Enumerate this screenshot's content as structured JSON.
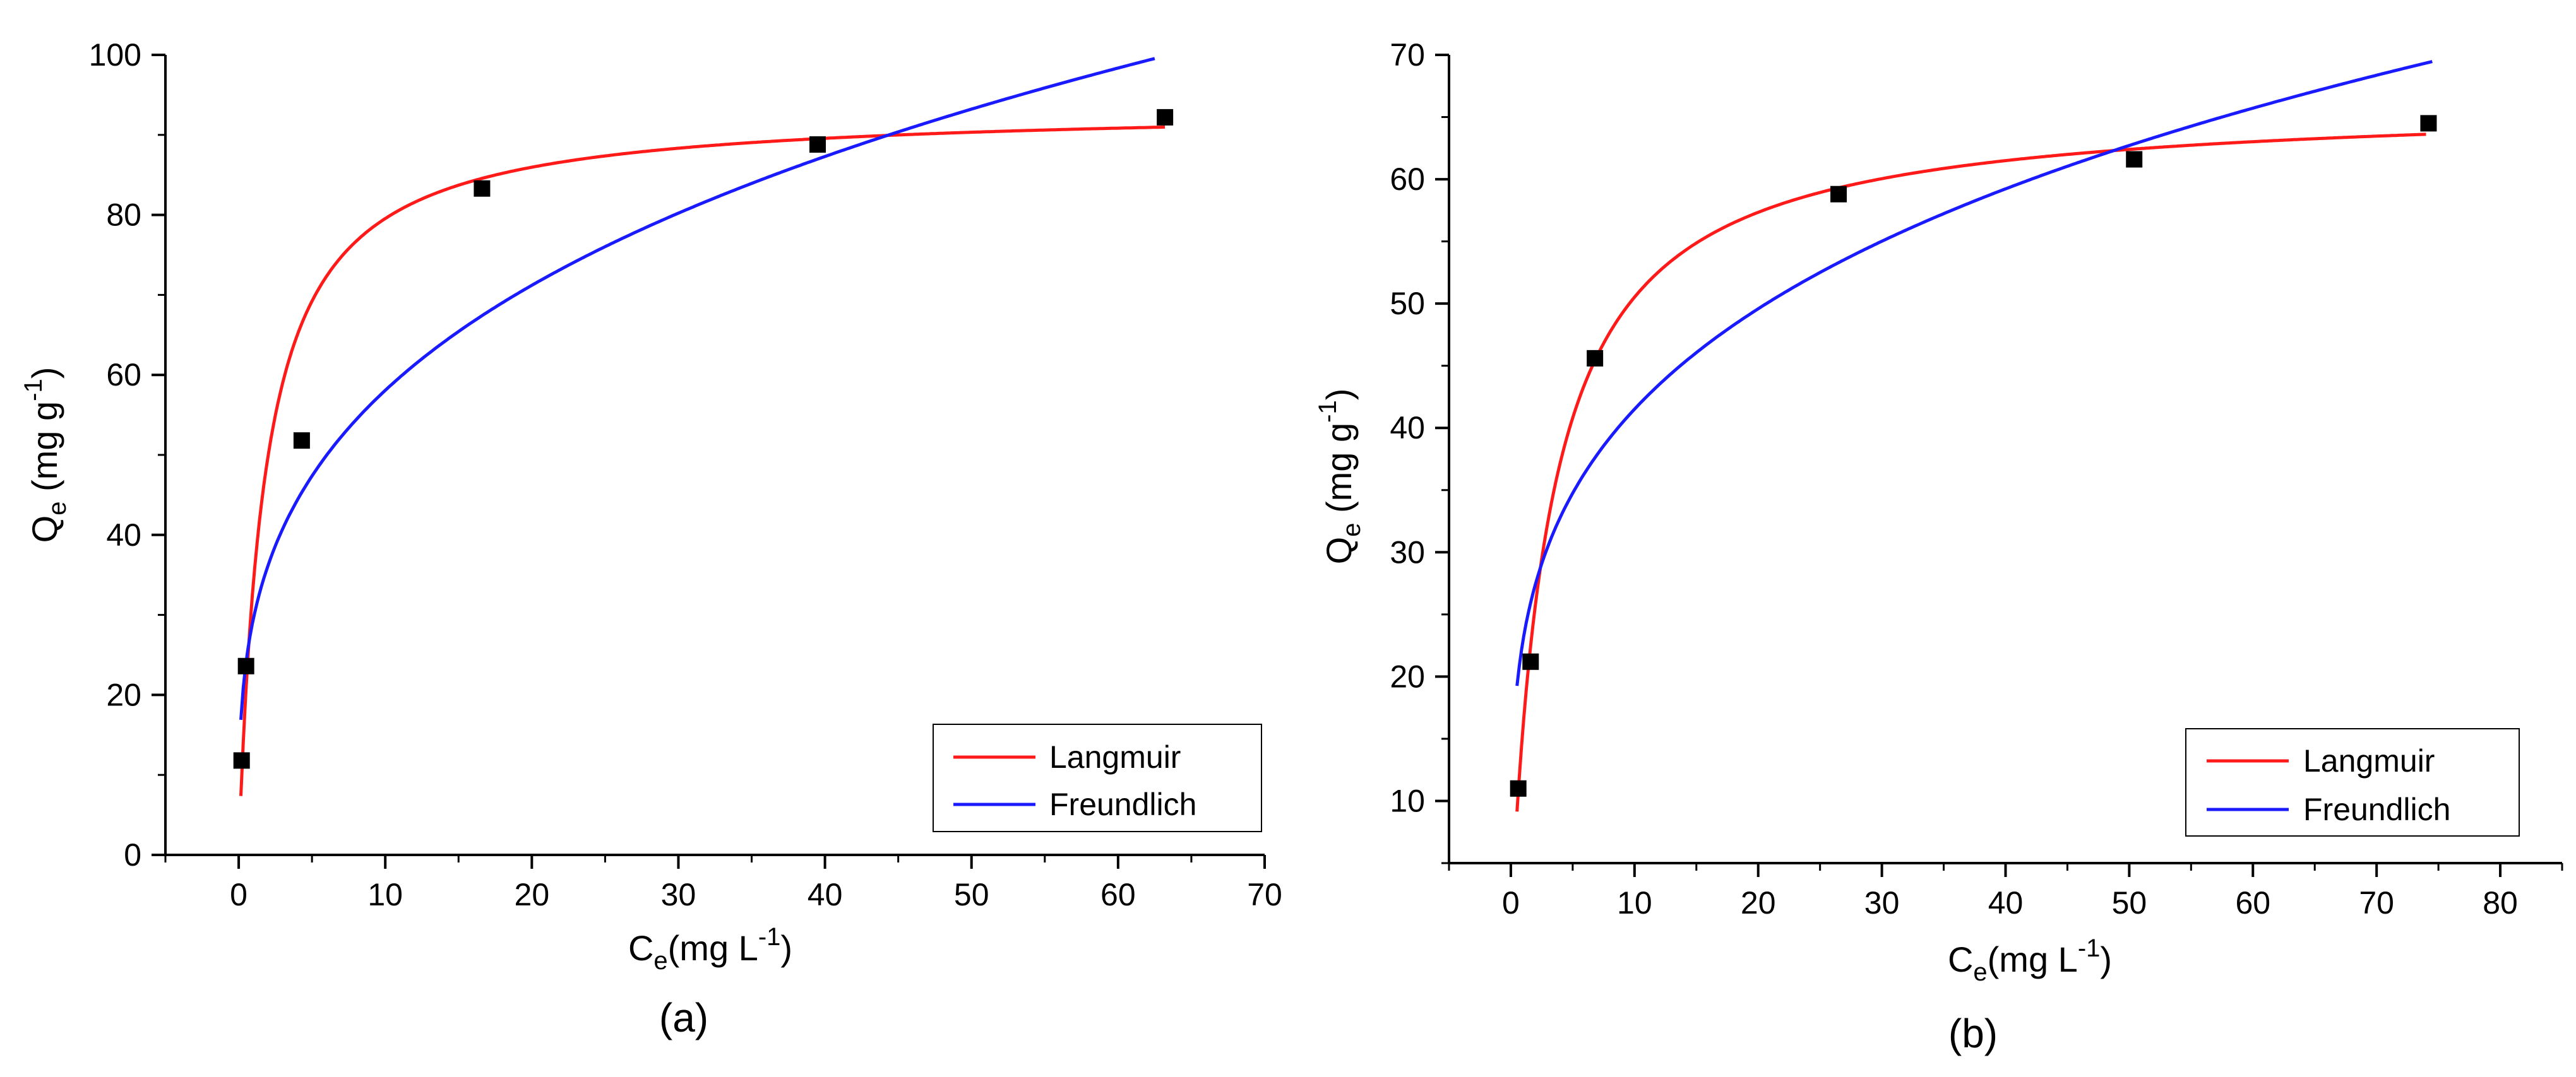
{
  "colors": {
    "langmuir": "#ff1a1a",
    "freundlich": "#1a1aff",
    "points": "#000000"
  },
  "chart_data": [
    {
      "type": "scatter",
      "panel_label": "(a)",
      "xlabel": {
        "main": "C",
        "sub": "e",
        "rest": "(mg L",
        "sup": "-1",
        "end": ")"
      },
      "ylabel": {
        "main": "Q",
        "sub": "e",
        "rest": " (mg g",
        "sup": "-1",
        "end": ")"
      },
      "xlim": [
        -5,
        70
      ],
      "ylim": [
        0,
        100
      ],
      "xticks": [
        0,
        10,
        20,
        30,
        40,
        50,
        60,
        70
      ],
      "yticks": [
        0,
        20,
        40,
        60,
        80,
        100
      ],
      "points": [
        {
          "x": 0.2,
          "y": 11.8
        },
        {
          "x": 0.5,
          "y": 23.6
        },
        {
          "x": 4.3,
          "y": 51.8
        },
        {
          "x": 16.6,
          "y": 83.3
        },
        {
          "x": 39.5,
          "y": 88.8
        },
        {
          "x": 63.2,
          "y": 92.2
        }
      ],
      "series": [
        {
          "name": "Langmuir",
          "model": "langmuir",
          "qmax": 93.5,
          "K": 0.57,
          "x_range": [
            0.15,
            63.2
          ]
        },
        {
          "name": "Freundlich",
          "model": "freundlich",
          "Kf": 29.5,
          "n": 3.4,
          "x_range": [
            0.15,
            62.5
          ]
        }
      ],
      "legend_position": "bottom-right"
    },
    {
      "type": "scatter",
      "panel_label": "(b)",
      "xlabel": {
        "main": "C",
        "sub": "e",
        "rest": "(mg L",
        "sup": "-1",
        "end": ")"
      },
      "ylabel": {
        "main": "Q",
        "sub": "e",
        "rest": " (mg g",
        "sup": "-1",
        "end": ")"
      },
      "xlim": [
        -5,
        85
      ],
      "ylim": [
        5,
        70
      ],
      "xticks": [
        0,
        10,
        20,
        30,
        40,
        50,
        60,
        70,
        80
      ],
      "yticks": [
        10,
        20,
        30,
        40,
        50,
        60,
        70
      ],
      "points": [
        {
          "x": 0.6,
          "y": 11.0
        },
        {
          "x": 1.6,
          "y": 21.2
        },
        {
          "x": 6.8,
          "y": 45.6
        },
        {
          "x": 26.5,
          "y": 58.8
        },
        {
          "x": 50.4,
          "y": 61.6
        },
        {
          "x": 74.2,
          "y": 64.5
        }
      ],
      "series": [
        {
          "name": "Langmuir",
          "model": "langmuir",
          "qmax": 66.3,
          "K": 0.32,
          "x_range": [
            0.5,
            74.0
          ]
        },
        {
          "name": "Freundlich",
          "model": "freundlich",
          "Kf": 23.0,
          "n": 3.9,
          "x_range": [
            0.5,
            74.5
          ]
        }
      ],
      "legend_position": "bottom-right"
    }
  ]
}
